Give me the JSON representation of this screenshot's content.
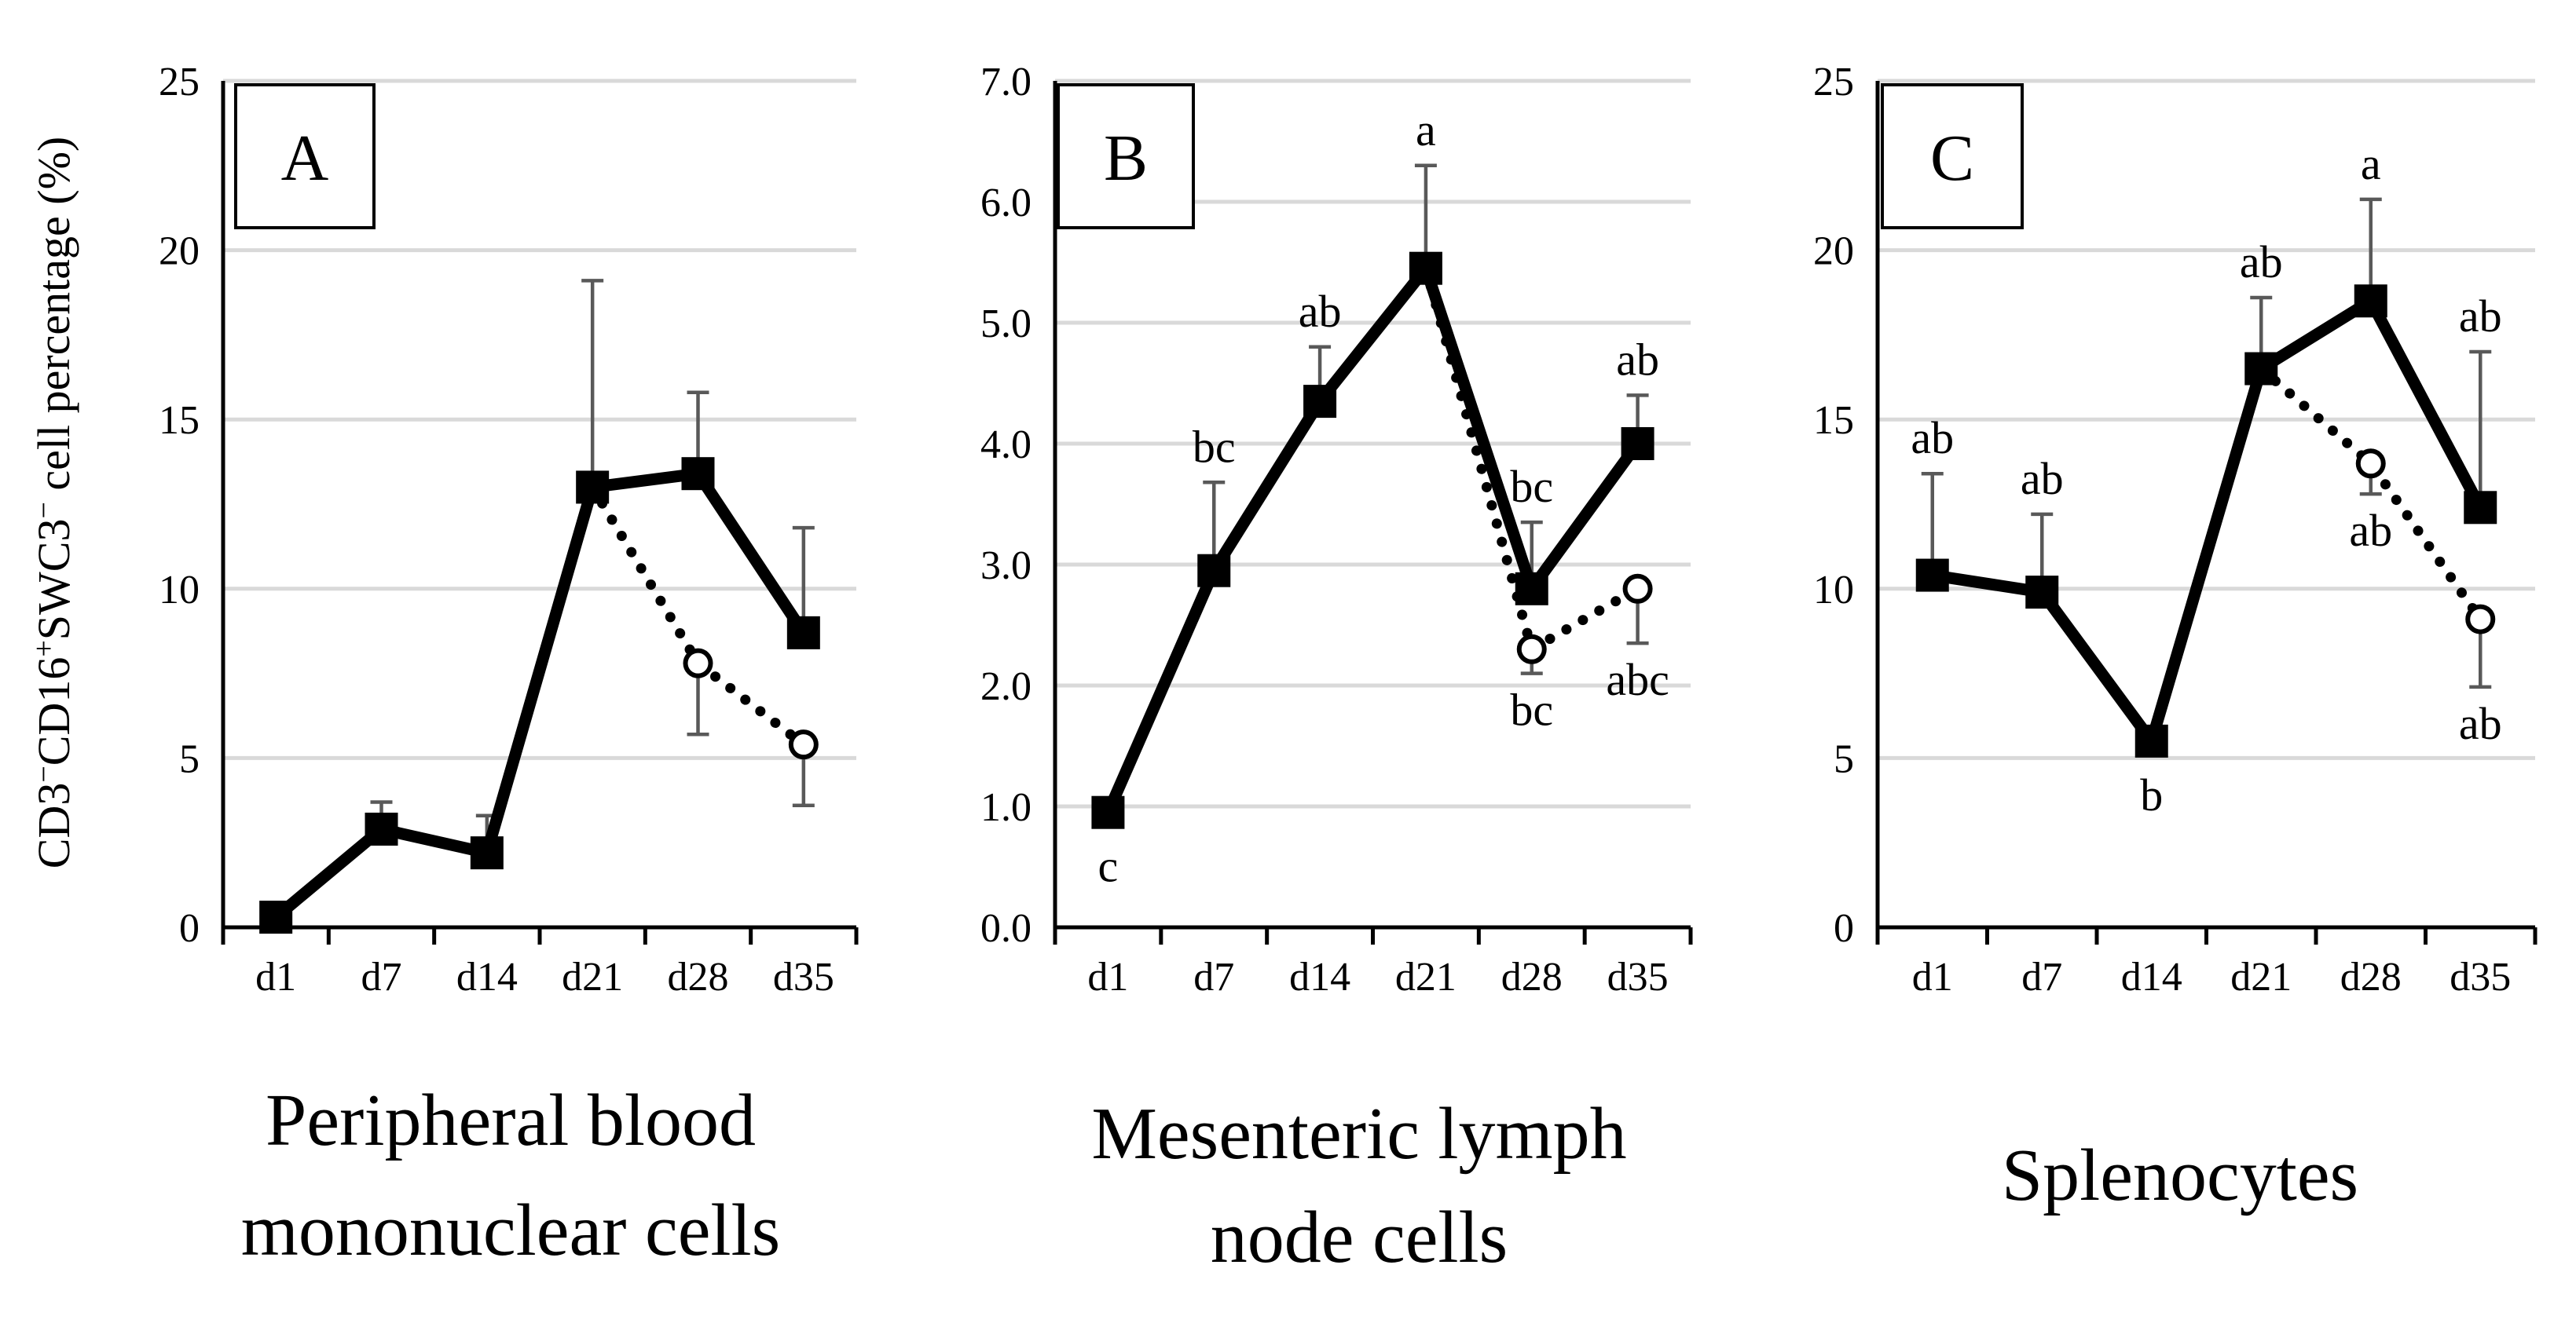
{
  "ylabel": {
    "parts": [
      "CD3",
      "−",
      "CD16",
      "+",
      "SWC3",
      "−",
      " cell percentage (%)"
    ]
  },
  "chart_data": [
    {
      "type": "line",
      "panel": "A",
      "caption_lines": [
        "Peripheral blood",
        "mononuclear cells"
      ],
      "categories": [
        "d1",
        "d7",
        "d14",
        "d21",
        "d28",
        "d35"
      ],
      "ylim": [
        0,
        25
      ],
      "yticks": [
        0,
        5,
        10,
        15,
        20,
        25
      ],
      "ytick_labels": [
        "0",
        "5",
        "10",
        "15",
        "20",
        "25"
      ],
      "series": [
        {
          "name": "solid",
          "style": "solid",
          "marker": "square",
          "values": [
            0.3,
            2.9,
            2.2,
            13.0,
            13.4,
            8.7
          ],
          "errors": [
            null,
            3.7,
            3.3,
            19.1,
            15.8,
            11.8
          ],
          "labels": [
            null,
            null,
            null,
            null,
            null,
            null
          ]
        },
        {
          "name": "dotted",
          "style": "dotted",
          "marker": "circle",
          "start_index": 3,
          "values": [
            null,
            null,
            null,
            13.0,
            7.8,
            5.4
          ],
          "errors": [
            null,
            null,
            null,
            null,
            5.7,
            3.6
          ],
          "labels": [
            null,
            null,
            null,
            null,
            null,
            null
          ]
        }
      ]
    },
    {
      "type": "line",
      "panel": "B",
      "caption_lines": [
        "Mesenteric lymph",
        "node cells"
      ],
      "categories": [
        "d1",
        "d7",
        "d14",
        "d21",
        "d28",
        "d35"
      ],
      "ylim": [
        0,
        7
      ],
      "yticks": [
        0,
        1,
        2,
        3,
        4,
        5,
        6,
        7
      ],
      "ytick_labels": [
        "0.0",
        "1.0",
        "2.0",
        "3.0",
        "4.0",
        "5.0",
        "6.0",
        "7.0"
      ],
      "series": [
        {
          "name": "solid",
          "style": "solid",
          "marker": "square",
          "values": [
            0.95,
            2.95,
            4.35,
            5.45,
            2.8,
            4.0
          ],
          "errors": [
            null,
            3.68,
            4.8,
            6.3,
            3.35,
            4.4
          ],
          "labels": [
            "c",
            "bc",
            "ab",
            "a",
            "bc",
            "ab"
          ],
          "label_pos": [
            "below",
            "above",
            "above",
            "above",
            "above",
            "above"
          ]
        },
        {
          "name": "dotted",
          "style": "dotted",
          "marker": "circle",
          "start_index": 3,
          "values": [
            null,
            null,
            null,
            5.45,
            2.3,
            2.8
          ],
          "errors": [
            null,
            null,
            null,
            null,
            2.1,
            2.35
          ],
          "labels": [
            null,
            null,
            null,
            null,
            "bc",
            "abc"
          ],
          "label_pos": [
            null,
            null,
            null,
            null,
            "below",
            "below"
          ]
        }
      ]
    },
    {
      "type": "line",
      "panel": "C",
      "caption_lines": [
        "Splenocytes"
      ],
      "categories": [
        "d1",
        "d7",
        "d14",
        "d21",
        "d28",
        "d35"
      ],
      "ylim": [
        0,
        25
      ],
      "yticks": [
        0,
        5,
        10,
        15,
        20,
        25
      ],
      "ytick_labels": [
        "0",
        "5",
        "10",
        "15",
        "20",
        "25"
      ],
      "series": [
        {
          "name": "solid",
          "style": "solid",
          "marker": "square",
          "values": [
            10.4,
            9.9,
            5.5,
            16.5,
            18.5,
            12.4
          ],
          "errors": [
            13.4,
            12.2,
            null,
            18.6,
            21.5,
            17.0
          ],
          "labels": [
            "ab",
            "ab",
            "b",
            "ab",
            "a",
            "ab"
          ],
          "label_pos": [
            "above",
            "above",
            "below",
            "above",
            "above",
            "above"
          ]
        },
        {
          "name": "dotted",
          "style": "dotted",
          "marker": "circle",
          "start_index": 3,
          "values": [
            null,
            null,
            null,
            16.5,
            13.7,
            9.1
          ],
          "errors": [
            null,
            null,
            null,
            null,
            12.8,
            7.1
          ],
          "labels": [
            null,
            null,
            null,
            null,
            "ab",
            "ab"
          ],
          "label_pos": [
            null,
            null,
            null,
            null,
            "below",
            "below"
          ]
        }
      ]
    }
  ]
}
